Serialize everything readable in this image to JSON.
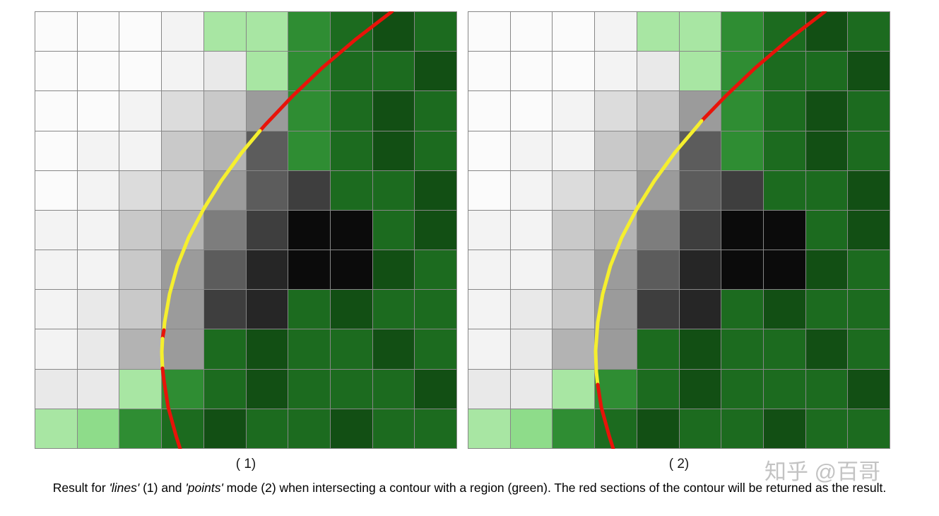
{
  "figure": {
    "panel_labels": [
      "( 1)",
      "( 2)"
    ],
    "caption": {
      "parts": [
        {
          "text": "Result for ",
          "italic": false
        },
        {
          "text": "'lines'",
          "italic": true
        },
        {
          "text": " (1) and ",
          "italic": false
        },
        {
          "text": "'points'",
          "italic": true
        },
        {
          "text": " mode (2) when intersecting a contour with a region (green). The red sections of the contour will be returned as the result.",
          "italic": false
        }
      ]
    },
    "watermark": "知乎 @百哥"
  },
  "palette": {
    "w0": "#fbfbfb",
    "w1": "#f3f3f3",
    "w2": "#e9e9e9",
    "g1": "#dcdcdc",
    "g2": "#c9c9c9",
    "g3": "#b3b3b3",
    "g4": "#9b9b9b",
    "g5": "#7d7d7d",
    "g6": "#5c5c5c",
    "g7": "#3e3e3e",
    "g8": "#262626",
    "k": "#0b0b0b",
    "lg": "#a8e6a3",
    "lg2": "#8edc8a",
    "mg": "#2f8d33",
    "dg1": "#1c6b1f",
    "dg2": "#124f14"
  },
  "grid": {
    "rows": 11,
    "cols": 10,
    "line_color": "#878787",
    "cells": [
      [
        "w0",
        "w0",
        "w0",
        "w1",
        "lg",
        "lg",
        "mg",
        "dg1",
        "dg2",
        "dg1"
      ],
      [
        "w0",
        "w0",
        "w0",
        "w1",
        "w2",
        "lg",
        "mg",
        "dg1",
        "dg1",
        "dg2"
      ],
      [
        "w0",
        "w0",
        "w1",
        "g1",
        "g2",
        "g4",
        "mg",
        "dg1",
        "dg2",
        "dg1"
      ],
      [
        "w0",
        "w1",
        "w1",
        "g2",
        "g3",
        "g6",
        "mg",
        "dg1",
        "dg2",
        "dg1"
      ],
      [
        "w0",
        "w1",
        "g1",
        "g2",
        "g4",
        "g6",
        "g7",
        "dg1",
        "dg1",
        "dg2"
      ],
      [
        "w1",
        "w1",
        "g2",
        "g3",
        "g5",
        "g7",
        "k",
        "k",
        "dg1",
        "dg2"
      ],
      [
        "w1",
        "w1",
        "g2",
        "g4",
        "g6",
        "g8",
        "k",
        "k",
        "dg2",
        "dg1"
      ],
      [
        "w1",
        "w2",
        "g2",
        "g4",
        "g7",
        "g8",
        "dg1",
        "dg2",
        "dg1",
        "dg1"
      ],
      [
        "w1",
        "w2",
        "g3",
        "g4",
        "dg1",
        "dg2",
        "dg1",
        "dg1",
        "dg2",
        "dg1"
      ],
      [
        "w2",
        "w2",
        "lg",
        "mg",
        "dg1",
        "dg2",
        "dg1",
        "dg1",
        "dg1",
        "dg2"
      ],
      [
        "lg",
        "lg2",
        "mg",
        "dg1",
        "dg2",
        "dg1",
        "dg1",
        "dg2",
        "dg1",
        "dg1"
      ]
    ]
  },
  "curve_colors": {
    "red": "#e81309",
    "yellow": "#f5ef2e"
  },
  "curve_width": 5,
  "panels": [
    {
      "label": "( 1)",
      "mode": "lines",
      "segments": [
        {
          "color": "red",
          "points": [
            [
              506,
              0
            ],
            [
              454,
              40
            ],
            [
              407,
              80
            ],
            [
              365,
              120
            ],
            [
              327,
              160
            ],
            [
              319,
              169
            ]
          ]
        },
        {
          "color": "yellow",
          "points": [
            [
              319,
              169
            ],
            [
              293,
              200
            ],
            [
              264,
              240
            ],
            [
              239,
              280
            ],
            [
              218,
              320
            ],
            [
              202,
              360
            ],
            [
              191,
              400
            ],
            [
              184,
              440
            ],
            [
              183,
              451
            ]
          ]
        },
        {
          "color": "red",
          "points": [
            [
              183,
              451
            ],
            [
              181,
              463
            ]
          ]
        },
        {
          "color": "yellow",
          "points": [
            [
              181,
              463
            ],
            [
              180,
              482
            ],
            [
              181,
              505
            ]
          ]
        },
        {
          "color": "red",
          "points": [
            [
              181,
              505
            ],
            [
              183,
              522
            ],
            [
              189,
              560
            ],
            [
              200,
              600
            ],
            [
              206,
              619
            ]
          ]
        }
      ]
    },
    {
      "label": "( 2)",
      "mode": "points",
      "segments": [
        {
          "color": "red",
          "points": [
            [
              506,
              0
            ],
            [
              454,
              40
            ],
            [
              407,
              80
            ],
            [
              365,
              120
            ],
            [
              331,
              155
            ]
          ]
        },
        {
          "color": "yellow",
          "points": [
            [
              331,
              155
            ],
            [
              327,
              160
            ],
            [
              293,
              200
            ],
            [
              264,
              240
            ],
            [
              239,
              280
            ],
            [
              218,
              320
            ],
            [
              202,
              360
            ],
            [
              191,
              400
            ],
            [
              184,
              440
            ],
            [
              181,
              480
            ],
            [
              182,
              510
            ],
            [
              184,
              528
            ]
          ]
        },
        {
          "color": "red",
          "points": [
            [
              184,
              528
            ],
            [
              189,
              560
            ],
            [
              200,
              600
            ],
            [
              206,
              619
            ]
          ]
        }
      ]
    }
  ]
}
